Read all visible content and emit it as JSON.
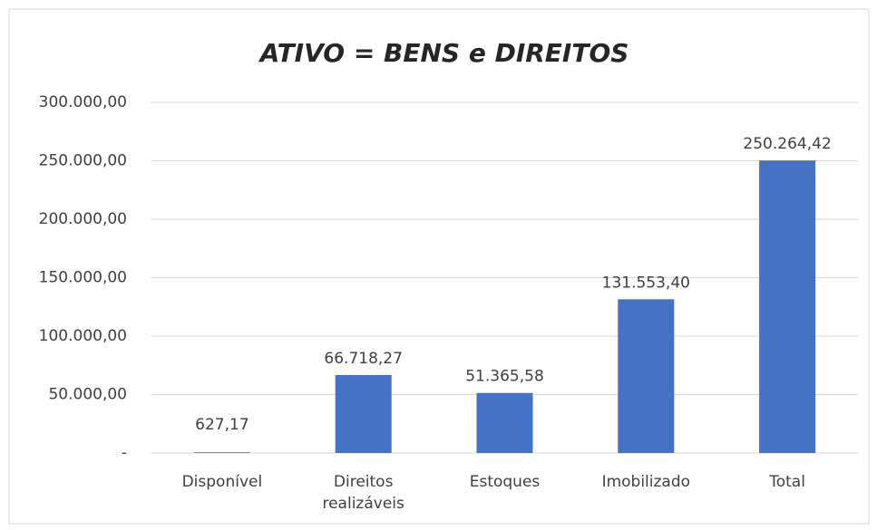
{
  "chart_data": {
    "type": "bar",
    "title": "ATIVO = BENS e DIREITOS",
    "categories": [
      "Disponível",
      "Direitos realizáveis",
      "Estoques",
      "Imobilizado",
      "Total"
    ],
    "values": [
      627.17,
      66718.27,
      51365.58,
      131553.4,
      250264.42
    ],
    "value_labels": [
      "627,17",
      "66.718,27",
      "51.365,58",
      "131.553,40",
      "250.264,42"
    ],
    "color": "#4472c4",
    "ylim": [
      0,
      300000
    ],
    "yticks": [
      {
        "value": 0,
        "label": "-"
      },
      {
        "value": 50000,
        "label": "50.000,00"
      },
      {
        "value": 100000,
        "label": "100.000,00"
      },
      {
        "value": 150000,
        "label": "150.000,00"
      },
      {
        "value": 200000,
        "label": "200.000,00"
      },
      {
        "value": 250000,
        "label": "250.000,00"
      },
      {
        "value": 300000,
        "label": "300.000,00"
      }
    ],
    "grid": true
  }
}
